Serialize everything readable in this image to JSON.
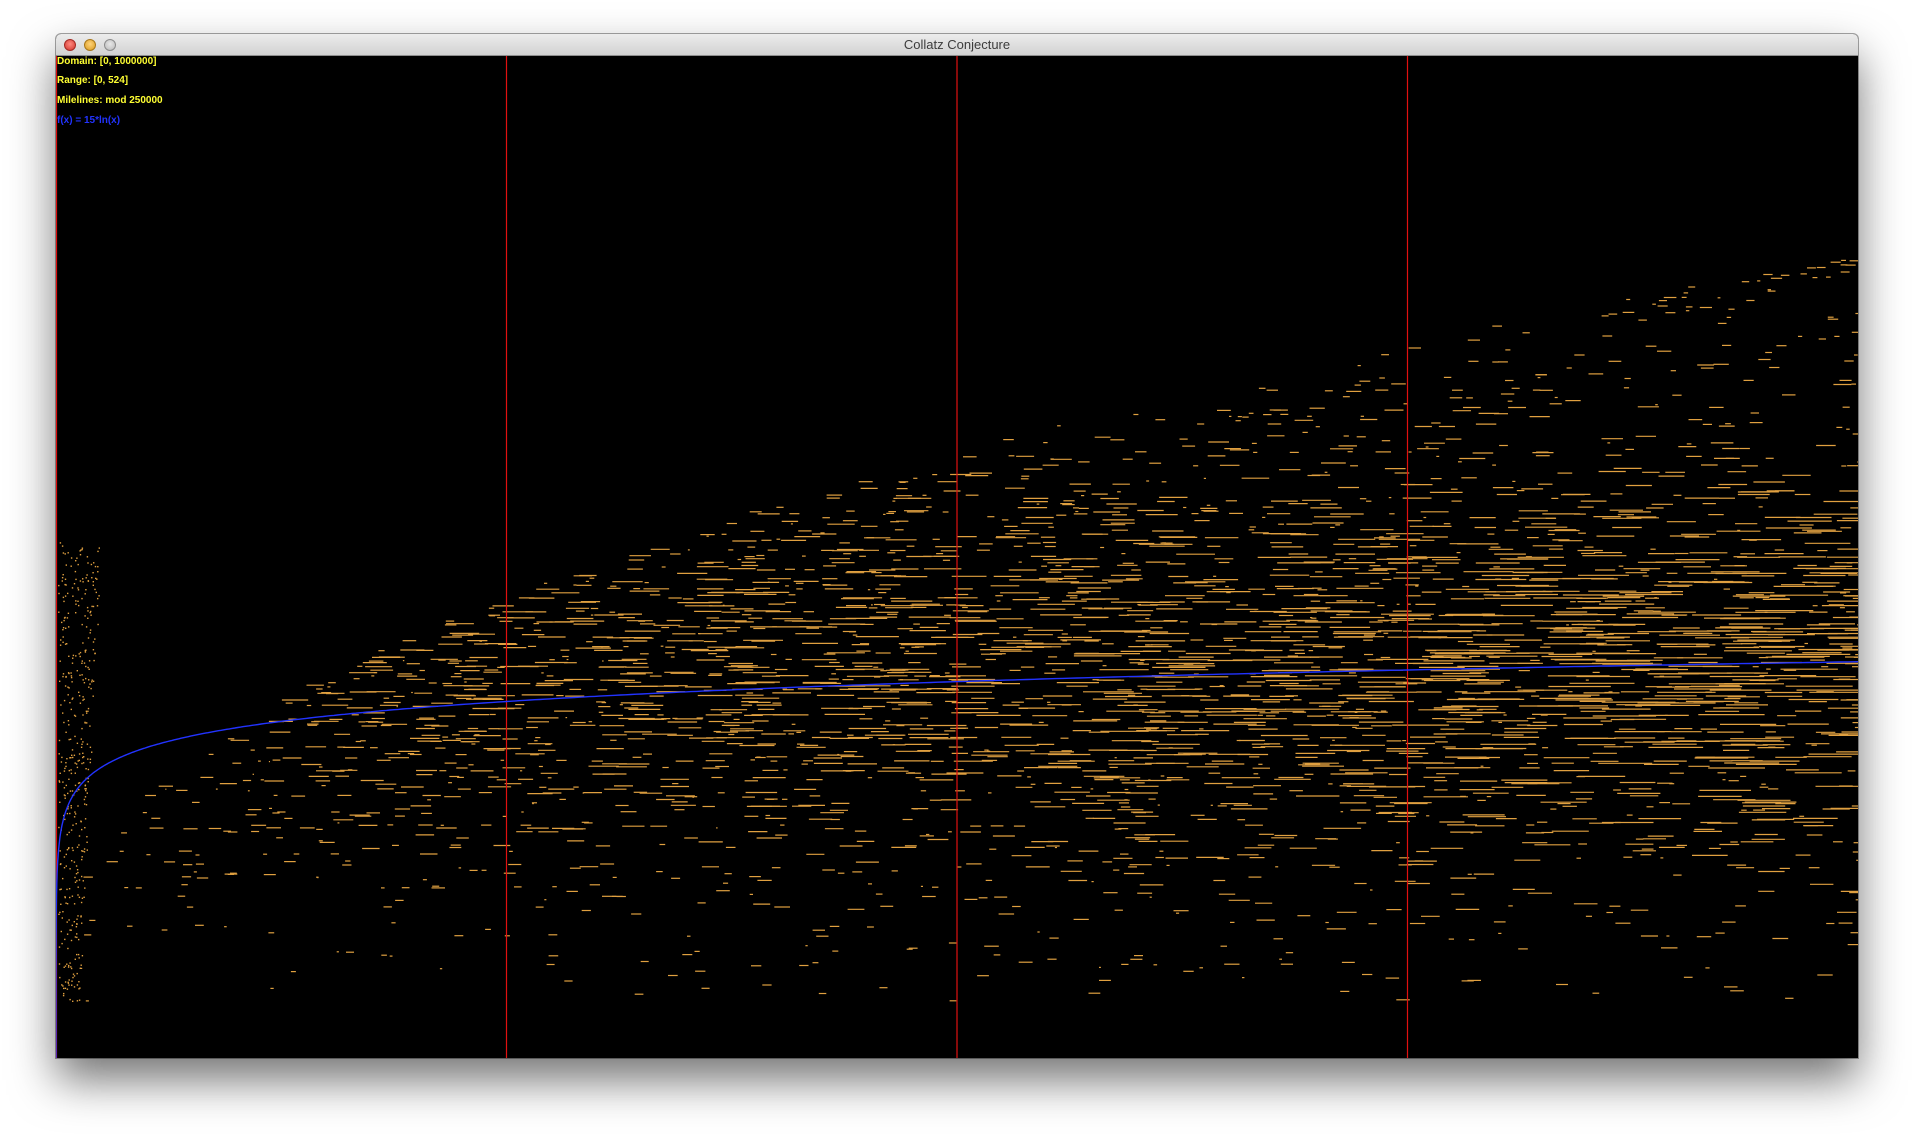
{
  "window": {
    "title": "Collatz Conjecture"
  },
  "overlay": {
    "domain": "Domain: [0, 1000000]",
    "range": "Range: [0, 524]",
    "milelines": "Milelines: mod 250000",
    "fx": "f(x) = 15*ln(x)"
  },
  "colors": {
    "background": "#000000",
    "points": "#e0a040",
    "mileline": "#e01010",
    "curve": "#2233ff",
    "info_text": "#ffff33"
  },
  "chart_data": {
    "type": "scatter",
    "title": "Collatz Conjecture",
    "xlim": [
      0,
      1000000
    ],
    "ylim": [
      0,
      524
    ],
    "milelines_mod": 250000,
    "milelines_x": [
      0,
      250000,
      500000,
      750000
    ],
    "series": [
      {
        "name": "f(x) = 15*ln(x)",
        "kind": "line",
        "x": [
          1,
          2000,
          10000,
          50000,
          100000,
          250000,
          400000,
          500000,
          600000,
          750000,
          900000,
          1000000
        ],
        "y": [
          0,
          114.0,
          138.2,
          162.3,
          172.7,
          186.5,
          193.5,
          196.8,
          199.6,
          202.9,
          205.6,
          207.2
        ]
      }
    ],
    "points_description_values": {
      "stopping_time_band": [
        30,
        420
      ]
    }
  }
}
